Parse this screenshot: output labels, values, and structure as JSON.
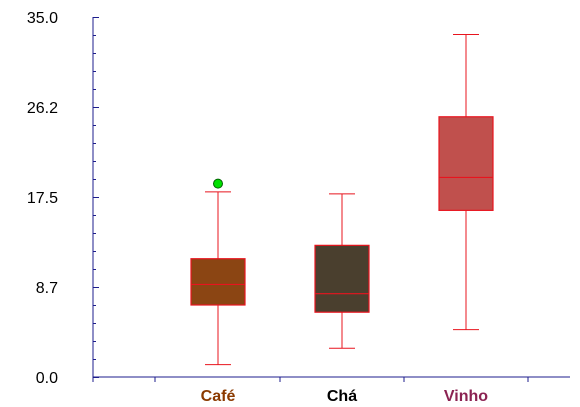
{
  "chart_data": {
    "type": "box",
    "ylim": [
      0,
      35
    ],
    "y_ticks": [
      "0.0",
      "8.7",
      "17.5",
      "26.2",
      "35.0"
    ],
    "y_tick_values": [
      0,
      8.75,
      17.5,
      26.25,
      35
    ],
    "grid": false,
    "categories": [
      "Café",
      "Chá",
      "Vinho"
    ],
    "category_colors": [
      "#8b3a00",
      "#000000",
      "#8b2252"
    ],
    "boxes": [
      {
        "category": "Café",
        "min": 1.2,
        "q1": 7.0,
        "median": 9.0,
        "q3": 11.5,
        "max": 18.0,
        "outliers": [
          18.8
        ],
        "fill": "#8b4513"
      },
      {
        "category": "Chá",
        "min": 2.8,
        "q1": 6.3,
        "median": 8.1,
        "q3": 12.8,
        "max": 17.8,
        "outliers": [],
        "fill": "#4a3f2e"
      },
      {
        "category": "Vinho",
        "min": 4.6,
        "q1": 16.2,
        "median": 19.4,
        "q3": 25.3,
        "max": 33.3,
        "outliers": [],
        "fill": "#c0504d"
      }
    ],
    "box_edge_color": "#e8141e",
    "outlier_color": "#00e000",
    "axis_color": "#1c1c8c"
  }
}
